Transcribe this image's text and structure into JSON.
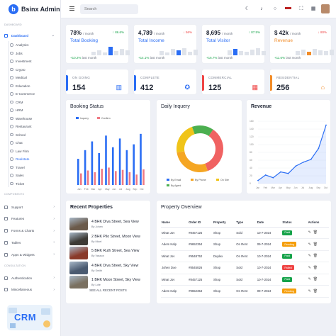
{
  "app": {
    "name": "Bsinx Admin",
    "logo_letter": "b"
  },
  "header": {
    "search_placeholder": "Search",
    "icons": [
      "menu-icon",
      "moon-icon",
      "bell-icon",
      "chat-icon",
      "flag-icon",
      "fullscreen-icon",
      "grid-icon",
      "avatar"
    ]
  },
  "sidebar": {
    "section_dashboard": "DASHBOARD",
    "dashboard": "Dashboard",
    "sub_items": [
      "Analytics",
      "Jobs",
      "Investment",
      "Crypto",
      "Medical",
      "Education",
      "E-Commerce",
      "CRM",
      "HRM",
      "Warehouse",
      "Restaurant",
      "School",
      "Chat",
      "Law Firm",
      "Realstate",
      "Travel",
      "Sales",
      "Ticket"
    ],
    "selected_sub": "Realstate",
    "section_components": "COMPONENTS",
    "components": [
      "Support",
      "Features",
      "Forms & Charts",
      "Tables",
      "Apps & Widgets"
    ],
    "section_more": "CONSULTATION",
    "more": [
      "Authentication",
      "Miscellaneous"
    ],
    "promo": "CRM"
  },
  "stats": [
    {
      "value": "78%",
      "unit": "/ month",
      "delta": "86.6%",
      "delta_dir": "up",
      "label": "Total Booking",
      "foot_value": "+10.2%",
      "foot_text": "last month",
      "color": "#2a6df4"
    },
    {
      "value": "4,789",
      "unit": "/ month",
      "delta": "56%",
      "delta_dir": "down",
      "label": "Total Income",
      "foot_value": "+14.1%",
      "foot_text": "last month",
      "color": "#2a6df4"
    },
    {
      "value": "8,695",
      "unit": "/ month",
      "delta": "87.5%",
      "delta_dir": "up",
      "label": "Total Visitor",
      "foot_value": "+16.7%",
      "foot_text": "last month",
      "color": "#2a6df4"
    },
    {
      "value": "$ 42k",
      "unit": "/ month",
      "delta": "80%",
      "delta_dir": "down",
      "label": "Revenue",
      "foot_value": "+11.6%",
      "foot_text": "last month",
      "color": "#f28c28"
    }
  ],
  "status_cards": [
    {
      "label": "ON GOING",
      "value": "154",
      "color": "#2a6df4",
      "icon": "building-icon"
    },
    {
      "label": "COMPLETE",
      "value": "412",
      "color": "#2a6df4",
      "icon": "badge-icon"
    },
    {
      "label": "COMMERCIAL",
      "value": "125",
      "color": "#ef4444",
      "icon": "office-icon"
    },
    {
      "label": "RESIDENTIAL",
      "value": "256",
      "color": "#f28c28",
      "icon": "house-icon"
    }
  ],
  "booking": {
    "title": "Booking Status",
    "legend": [
      "Inquery",
      "Confirm"
    ]
  },
  "inquery": {
    "title": "Daily Inquery",
    "legend": [
      "By Email",
      "By Phone",
      "On Site",
      "By Agent"
    ]
  },
  "revenue": {
    "title": "Revenue"
  },
  "recent": {
    "title": "Recent Properties",
    "items": [
      {
        "title": "4 BHK Diva Street, Sea View",
        "by": "By Johen",
        "color": "#6b5a4a"
      },
      {
        "title": "2 BHK Pilo Street, Moon View",
        "by": "By Micel",
        "color": "#3d3a35"
      },
      {
        "title": "5 BHK Ruth Street, Sea View",
        "by": "By Vasson",
        "color": "#8a3a2a"
      },
      {
        "title": "4 BHK Diva Street, Sky View",
        "by": "By Smith",
        "color": "#4a5a70"
      },
      {
        "title": "1 BHK Moon Street, Sky View",
        "by": "By Lofe",
        "color": "#7a7060"
      }
    ],
    "see_all": "SEE ALL RECENT POSTS"
  },
  "overview": {
    "title": "Property Overview",
    "columns": [
      "Name",
      "Order ID",
      "Property",
      "Type",
      "Date",
      "Status",
      "Actions"
    ],
    "rows": [
      [
        "Minat Jov",
        "#8457125",
        "Shop",
        "Sold",
        "10-7-2024",
        "Paid"
      ],
      [
        "Adem Kalp",
        "#9652354",
        "Shop",
        "On Rent",
        "09-7-2024",
        "Pending"
      ],
      [
        "Minat Jov",
        "#9548752",
        "Duplex",
        "On Rent",
        "10-7-2024",
        "Paid"
      ],
      [
        "Johen Doe",
        "#8545826",
        "Shop",
        "Sold",
        "10-7-2024",
        "Failed"
      ],
      [
        "Minat Jov",
        "#8457125",
        "Shop",
        "Sold",
        "10-7-2024",
        "Paid"
      ],
      [
        "Adem Kalp",
        "#9652354",
        "Shop",
        "On Rent",
        "09-7-2024",
        "Pending"
      ]
    ],
    "status_colors": {
      "Paid": "#16a34a",
      "Pending": "#f59e0b",
      "Failed": "#ef4444"
    }
  },
  "chart_data": [
    {
      "type": "bar",
      "title": "Booking Status",
      "categories": [
        "Jan",
        "Feb",
        "Mar",
        "Apr",
        "May",
        "Jun",
        "Jul",
        "Aug",
        "Sep",
        "Oct"
      ],
      "series": [
        {
          "name": "Inquery",
          "values": [
            45,
            60,
            75,
            55,
            85,
            65,
            80,
            60,
            70,
            88
          ]
        },
        {
          "name": "Confirm",
          "values": [
            20,
            25,
            22,
            28,
            30,
            24,
            26,
            22,
            18,
            27
          ]
        }
      ],
      "ylim": [
        0,
        100
      ]
    },
    {
      "type": "pie",
      "title": "Daily Inquery",
      "categories": [
        "By Email",
        "By Phone",
        "On Site",
        "By Agent"
      ],
      "values": [
        35,
        28,
        22,
        15
      ],
      "colors": [
        "#2a6df4",
        "#f5a623",
        "#f0c419",
        "#4caf50"
      ]
    },
    {
      "type": "line",
      "title": "Revenue",
      "x": [
        "Jan",
        "Feb",
        "Mar",
        "Apr",
        "May",
        "Jun",
        "Jul",
        "Aug",
        "Sep",
        "Oct"
      ],
      "values": [
        8,
        22,
        15,
        30,
        26,
        45,
        55,
        62,
        90,
        150
      ],
      "ylim": [
        0,
        160
      ],
      "yticks": [
        "0",
        "20",
        "40",
        "60",
        "80",
        "100",
        "120",
        "140",
        "160"
      ]
    }
  ]
}
